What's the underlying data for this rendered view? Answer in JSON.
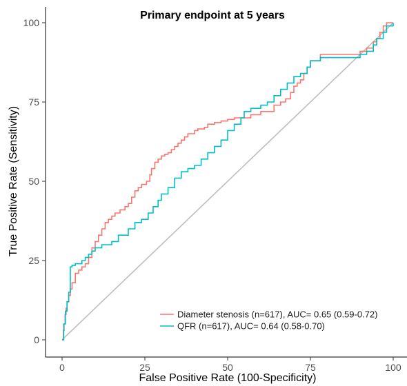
{
  "chart_data": {
    "type": "line",
    "title": "Primary endpoint at 5 years",
    "xlabel": "False Positive Rate (100-Specificity)",
    "ylabel": "True Positive Rate (Sensitivity)",
    "xlim": [
      0,
      100
    ],
    "ylim": [
      0,
      100
    ],
    "x_ticks": [
      0,
      25,
      50,
      75,
      100
    ],
    "y_ticks": [
      0,
      25,
      50,
      75,
      100
    ],
    "grid": false,
    "legend_position": "bottom-right",
    "reference_line": {
      "x": [
        0,
        100
      ],
      "y": [
        0,
        100
      ],
      "color": "#bebebe"
    },
    "series": [
      {
        "name": "Diameter stenosis (n=617), AUC= 0.65 (0.59-0.72)",
        "color": "#f8766d",
        "x": [
          0,
          0.4,
          0.6,
          0.9,
          1.2,
          1.5,
          2.0,
          2.5,
          3.0,
          4.0,
          5.0,
          6.0,
          7.0,
          8.0,
          9.0,
          10.0,
          11.0,
          12.0,
          13.0,
          14.0,
          15.0,
          16.0,
          17.5,
          19.0,
          20.0,
          21.0,
          22.0,
          23.0,
          24.0,
          25.5,
          26.5,
          27.0,
          28.0,
          29.0,
          30.0,
          31.0,
          32.0,
          33.0,
          34.0,
          35.0,
          36.0,
          37.0,
          38.0,
          40.0,
          41.0,
          43.0,
          44.0,
          46.0,
          48.0,
          50.0,
          52.0,
          54.0,
          55.0,
          57.0,
          58.0,
          60.0,
          62.0,
          64.0,
          66.0,
          67.5,
          69.0,
          70.0,
          71.0,
          72.0,
          73.0,
          74.0,
          75.0,
          78.0,
          80.0,
          83.0,
          85.0,
          87.0,
          89.0,
          90.0,
          92.0,
          94.0,
          95.0,
          96.0,
          97.0,
          98.0,
          100
        ],
        "y": [
          0,
          3,
          5,
          8,
          10,
          12,
          14,
          16,
          18,
          21,
          22,
          23,
          24,
          26,
          29,
          31,
          33,
          35,
          37,
          38,
          39,
          40,
          41,
          42,
          43,
          45,
          47,
          48,
          49,
          50,
          52,
          54,
          56,
          57,
          58,
          58.5,
          59,
          60,
          61,
          62,
          63,
          64,
          65,
          66,
          66.5,
          67,
          68,
          68.5,
          69,
          69.5,
          70,
          70,
          70,
          71,
          71,
          72,
          72,
          74,
          75,
          76,
          78,
          80,
          81,
          82,
          84,
          86,
          88,
          90,
          90,
          90,
          90,
          90,
          90,
          91,
          92,
          94,
          95,
          97,
          99,
          100,
          100
        ]
      },
      {
        "name": "QFR (n=617), AUC= 0.64 (0.58-0.70)",
        "color": "#00bfc4",
        "x": [
          0,
          0.5,
          1.0,
          1.5,
          2.0,
          2.5,
          3.0,
          4.0,
          6.0,
          7.0,
          8.0,
          9.0,
          10.0,
          12.0,
          15.0,
          17.0,
          20.0,
          22.0,
          24.0,
          26.0,
          27.5,
          29.0,
          30.0,
          32.0,
          34.0,
          36.0,
          38.0,
          40.0,
          42.0,
          44.0,
          46.0,
          48.0,
          50.0,
          52.0,
          54.0,
          55.0,
          57.0,
          58.0,
          60.0,
          62.0,
          64.0,
          66.0,
          68.0,
          70.0,
          72.0,
          74.0,
          75.0,
          78.0,
          82.0,
          85.0,
          88.0,
          90.0,
          92.0,
          94.0,
          95.0,
          97.0,
          98.0,
          100
        ],
        "y": [
          0,
          5,
          9,
          12,
          15,
          23,
          23.5,
          24,
          25,
          26,
          27,
          28,
          29,
          30,
          31,
          33,
          35,
          37,
          38,
          40,
          42,
          44,
          46,
          48,
          51,
          53,
          54,
          55,
          57,
          59,
          61,
          63,
          66,
          68,
          70,
          72,
          73,
          73,
          74,
          75,
          77,
          79,
          81,
          83,
          84,
          86,
          88,
          89,
          89,
          89,
          89,
          90,
          91,
          93,
          95,
          97,
          99,
          100
        ]
      }
    ]
  }
}
